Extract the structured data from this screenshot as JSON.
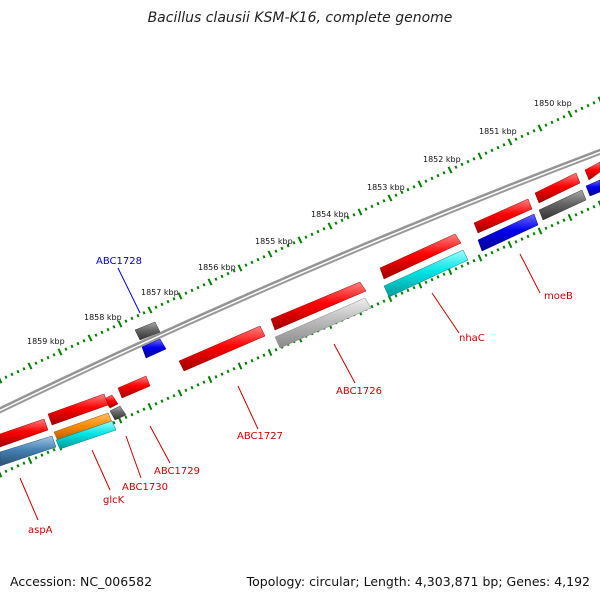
{
  "title": "Bacillus clausii KSM-K16, complete genome",
  "footer": {
    "accession": "Accession: NC_006582",
    "summary": "Topology: circular; Length: 4,303,871 bp; Genes: 4,192"
  },
  "colors": {
    "backbone": "#808080",
    "forward_gene": "#ff0000",
    "reverse_gene": "#ff0000",
    "label_gene": "#cc0000",
    "label_highlight": "#0000cc",
    "tick": "#008000",
    "cds_blue": "#0000ee",
    "cds_cyan": "#00e5e5",
    "cds_gray": "#666666",
    "cds_lightgray": "#bbbbbb",
    "cds_steelblue": "#4682b4",
    "cds_orange": "#ff8c00"
  },
  "kbp_labels": [
    "1850 kbp",
    "1851 kbp",
    "1852 kbp",
    "1853 kbp",
    "1854 kbp",
    "1855 kbp",
    "1856 kbp",
    "1857 kbp",
    "1858 kbp",
    "1859 kbp"
  ],
  "gene_labels": {
    "abc1728": "ABC1728",
    "moeb": "moeB",
    "nhac": "nhaC",
    "abc1726": "ABC1726",
    "abc1727": "ABC1727",
    "abc1729": "ABC1729",
    "abc1730": "ABC1730",
    "glck": "glcK",
    "aspa": "aspA"
  }
}
